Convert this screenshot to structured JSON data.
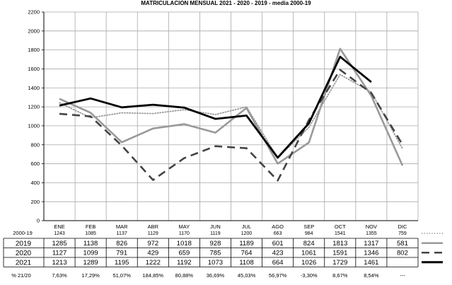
{
  "chart_data": {
    "type": "line",
    "title": "MATRICULACION MENSUAL  2021 - 2020 - 2019 - media 2000-19",
    "categories": [
      "ENE",
      "FEB",
      "MAR",
      "ABR",
      "MAY",
      "JUN",
      "JUL",
      "AGO",
      "SEP",
      "OCT",
      "NOV",
      "DIC"
    ],
    "ylim": [
      0,
      2200
    ],
    "yticks": [
      0,
      200,
      400,
      600,
      800,
      1000,
      1200,
      1400,
      1600,
      1800,
      2000,
      2200
    ],
    "grid": true,
    "series": [
      {
        "name": "2000-19",
        "color": "#999999",
        "style": "dotted",
        "values": [
          1243,
          1085,
          1137,
          1129,
          1170,
          1119,
          1200,
          663,
          984,
          1541,
          1355,
          759
        ]
      },
      {
        "name": "2019",
        "color": "#999999",
        "style": "solid",
        "values": [
          1285,
          1138,
          826,
          972,
          1018,
          928,
          1189,
          601,
          824,
          1813,
          1317,
          581
        ]
      },
      {
        "name": "2020",
        "color": "#444444",
        "style": "dashed",
        "values": [
          1127,
          1099,
          791,
          429,
          659,
          785,
          764,
          423,
          1061,
          1591,
          1346,
          802
        ]
      },
      {
        "name": "2021",
        "color": "#000000",
        "style": "solid",
        "values": [
          1213,
          1289,
          1195,
          1222,
          1192,
          1073,
          1108,
          664,
          1026,
          1729,
          1461,
          null
        ]
      }
    ],
    "pct_label": "% 21/20",
    "pct_values": [
      "7,63%",
      "17,29%",
      "51,07%",
      "184,85%",
      "80,88%",
      "36,69%",
      "45,03%",
      "56,97%",
      "-3,30%",
      "8,67%",
      "8,54%",
      "---"
    ]
  }
}
